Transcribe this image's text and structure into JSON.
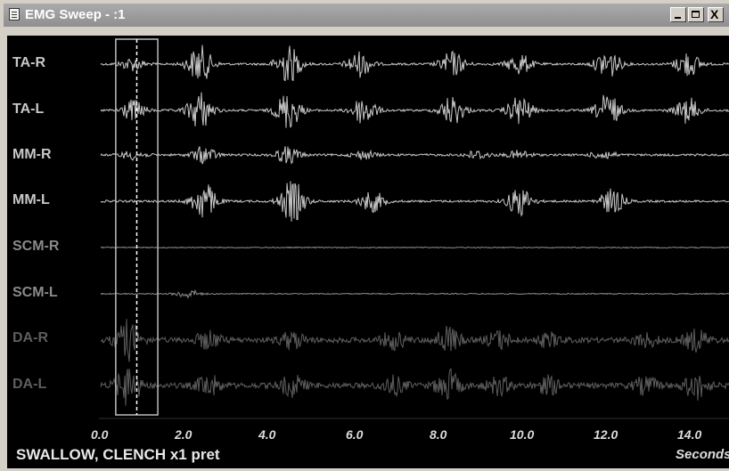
{
  "window": {
    "title": "EMG Sweep - :1",
    "buttons": {
      "minimize": "minimize",
      "maximize": "maximize",
      "close": "X"
    }
  },
  "channels": [
    {
      "label": "TA-R",
      "color": "#c8c8c8"
    },
    {
      "label": "TA-L",
      "color": "#c8c8c8"
    },
    {
      "label": "MM-R",
      "color": "#c8c8c8"
    },
    {
      "label": "MM-L",
      "color": "#c8c8c8"
    },
    {
      "label": "SCM-R",
      "color": "#8a8a8a"
    },
    {
      "label": "SCM-L",
      "color": "#8a8a8a"
    },
    {
      "label": "DA-R",
      "color": "#5e5e5e"
    },
    {
      "label": "DA-L",
      "color": "#5e5e5e"
    }
  ],
  "x_axis": {
    "ticks": [
      "0.0",
      "2.0",
      "4.0",
      "6.0",
      "8.0",
      "10.0",
      "12.0",
      "14.0"
    ],
    "unit_label": "Seconds"
  },
  "status_text": "SWALLOW, CLENCH x1 pret",
  "cursor_time": 0.9,
  "selection_range": [
    0.4,
    1.4
  ],
  "bursts": {
    "TA-R": [
      [
        0.8,
        0.3
      ],
      [
        2.4,
        0.9
      ],
      [
        4.5,
        0.9
      ],
      [
        6.2,
        0.6
      ],
      [
        8.4,
        0.6
      ],
      [
        10.0,
        0.5
      ],
      [
        12.1,
        0.7
      ],
      [
        14.0,
        0.6
      ]
    ],
    "TA-L": [
      [
        0.8,
        0.5
      ],
      [
        2.4,
        0.9
      ],
      [
        4.5,
        0.9
      ],
      [
        6.3,
        0.7
      ],
      [
        8.4,
        0.7
      ],
      [
        10.0,
        0.7
      ],
      [
        12.1,
        0.8
      ],
      [
        14.0,
        0.6
      ]
    ],
    "MM-R": [
      [
        0.8,
        0.2
      ],
      [
        2.5,
        0.4
      ],
      [
        4.5,
        0.4
      ],
      [
        6.3,
        0.2
      ],
      [
        9.0,
        0.2
      ],
      [
        10.0,
        0.2
      ],
      [
        12.0,
        0.2
      ]
    ],
    "MM-L": [
      [
        2.5,
        0.9
      ],
      [
        4.6,
        1.0
      ],
      [
        6.5,
        0.5
      ],
      [
        10.0,
        0.7
      ],
      [
        12.2,
        0.6
      ]
    ],
    "SCM-R": [],
    "SCM-L": [
      [
        2.1,
        0.2
      ]
    ],
    "DA-R": [
      [
        0.7,
        0.9
      ],
      [
        2.6,
        0.4
      ],
      [
        4.6,
        0.4
      ],
      [
        7.0,
        0.4
      ],
      [
        8.3,
        0.6
      ],
      [
        9.5,
        0.4
      ],
      [
        10.7,
        0.3
      ],
      [
        13.0,
        0.3
      ],
      [
        14.2,
        0.5
      ]
    ],
    "DA-L": [
      [
        0.7,
        0.9
      ],
      [
        2.6,
        0.5
      ],
      [
        4.6,
        0.5
      ],
      [
        7.0,
        0.4
      ],
      [
        8.3,
        0.7
      ],
      [
        9.5,
        0.4
      ],
      [
        10.7,
        0.4
      ],
      [
        13.0,
        0.4
      ],
      [
        14.2,
        0.6
      ]
    ]
  }
}
